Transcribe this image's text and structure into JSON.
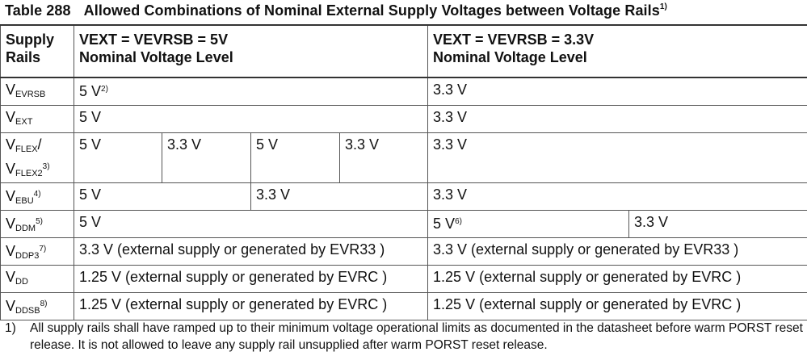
{
  "caption": {
    "number": "Table 288",
    "title": "Allowed Combinations of Nominal External Supply Voltages between Voltage Rails",
    "note": "1)"
  },
  "header": {
    "col0": [
      "Supply",
      "Rails"
    ],
    "col1": [
      "VEXT = VEVRSB = 5V",
      "Nominal Voltage Level"
    ],
    "col2": [
      "VEXT = VEVRSB = 3.3V",
      "Nominal Voltage Level"
    ]
  },
  "rows": {
    "evrsb": {
      "base": "V",
      "sub": "EVRSB",
      "c5": "5 V",
      "c5_note": "2)",
      "c33": "3.3 V"
    },
    "ext": {
      "base": "V",
      "sub": "EXT",
      "c5": "5 V",
      "c33": "3.3 V"
    },
    "flex": {
      "base1": "V",
      "sub1": "FLEX",
      "slash": "/",
      "base2": "V",
      "sub2": "FLEX2",
      "note": "3)",
      "c5a": "5 V",
      "c5b": "3.3 V",
      "c5c": "5 V",
      "c5d": "3.3 V",
      "c33": "3.3 V"
    },
    "ebu": {
      "base": "V",
      "sub": "EBU",
      "note": "4)",
      "c5a": "5 V",
      "c5b": "3.3 V",
      "c33": "3.3 V"
    },
    "ddm": {
      "base": "V",
      "sub": "DDM",
      "note": "5)",
      "c5": "5 V",
      "c33a": "5 V",
      "c33a_note": "6)",
      "c33b": "3.3 V"
    },
    "ddp3": {
      "base": "V",
      "sub": "DDP3",
      "note": "7)",
      "c5": "3.3 V (external supply or generated by EVR33 )",
      "c33": "3.3 V (external supply or generated by EVR33 )"
    },
    "dd": {
      "base": "V",
      "sub": "DD",
      "c5": "1.25 V (external supply or generated by EVRC )",
      "c33": "1.25 V (external supply or generated by EVRC )"
    },
    "ddsb": {
      "base": "V",
      "sub": "DDSB",
      "note": "8)",
      "c5": "1.25 V (external supply or generated by EVRC )",
      "c33": "1.25 V (external supply or generated by EVRC )"
    }
  },
  "footnote": {
    "mark": "1)",
    "text": "All supply rails shall have ramped up to their minimum voltage operational limits as documented in the datasheet before warm PORST reset release. It is not allowed to leave any supply rail unsupplied after warm PORST reset release."
  }
}
